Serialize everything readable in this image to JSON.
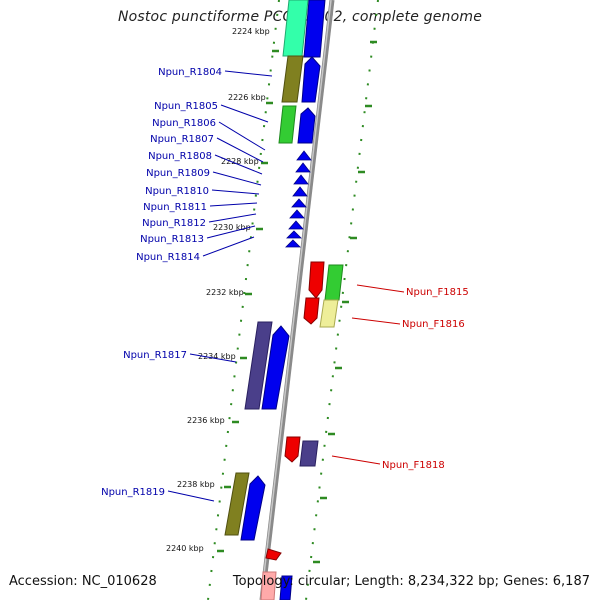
{
  "title": "Nostoc punctiforme PCC 73102, complete genome",
  "footer": {
    "accession": "Accession: NC_010628",
    "summary": "Topology: circular; Length: 8,234,322 bp; Genes: 6,187"
  },
  "colors": {
    "backbone": "#8a8a8a",
    "tick_dot": "#2e8b22",
    "reverse_label": "#0000aa",
    "forward_label": "#cc0000",
    "blue": "#0000ee",
    "red": "#ee0000",
    "cyan": "#33ffaa",
    "olive": "#808020",
    "green": "#33cc33",
    "purple": "#4a3f8a",
    "yellow": "#eeee99"
  },
  "scale_ticks": [
    "2224 kbp",
    "2226 kbp",
    "2228 kbp",
    "2230 kbp",
    "2232 kbp",
    "2234 kbp",
    "2236 kbp",
    "2238 kbp",
    "2240 kbp"
  ],
  "reverse_genes": [
    "Npun_R1804",
    "Npun_R1805",
    "Npun_R1806",
    "Npun_R1807",
    "Npun_R1808",
    "Npun_R1809",
    "Npun_R1810",
    "Npun_R1811",
    "Npun_R1812",
    "Npun_R1813",
    "Npun_R1814",
    "Npun_R1817",
    "Npun_R1819"
  ],
  "forward_genes": [
    "Npun_F1815",
    "Npun_F1816",
    "Npun_F1818"
  ]
}
